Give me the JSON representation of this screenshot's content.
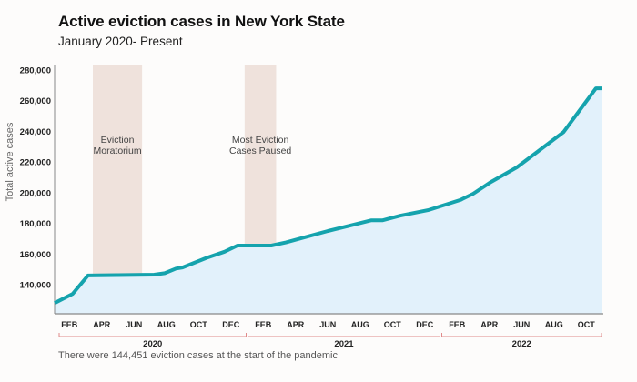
{
  "chart_data": {
    "type": "area",
    "title": "Active eviction cases in New York State",
    "subtitle": "January 2020- Present",
    "xlabel": "",
    "ylabel": "Total active cases",
    "ylim": [
      128000,
      280000
    ],
    "yticks": [
      140000,
      160000,
      180000,
      200000,
      220000,
      240000,
      260000,
      280000
    ],
    "ytick_labels": [
      "140,000",
      "160,000",
      "180,000",
      "200,000",
      "220,000",
      "240,000",
      "260,000",
      "280,000"
    ],
    "grid": false,
    "xlim_months": [
      0,
      34
    ],
    "xticks": [
      {
        "m": 1,
        "label": "FEB"
      },
      {
        "m": 3,
        "label": "APR"
      },
      {
        "m": 5,
        "label": "JUN"
      },
      {
        "m": 7,
        "label": "AUG"
      },
      {
        "m": 9,
        "label": "OCT"
      },
      {
        "m": 11,
        "label": "DEC"
      },
      {
        "m": 13,
        "label": "FEB"
      },
      {
        "m": 15,
        "label": "APR"
      },
      {
        "m": 17,
        "label": "JUN"
      },
      {
        "m": 19,
        "label": "AUG"
      },
      {
        "m": 21,
        "label": "OCT"
      },
      {
        "m": 23,
        "label": "DEC"
      },
      {
        "m": 25,
        "label": "FEB"
      },
      {
        "m": 27,
        "label": "APR"
      },
      {
        "m": 29,
        "label": "JUN"
      },
      {
        "m": 31,
        "label": "AUG"
      },
      {
        "m": 33,
        "label": "OCT"
      }
    ],
    "years": [
      {
        "label": "2020",
        "start": 0,
        "end": 12
      },
      {
        "label": "2021",
        "start": 12,
        "end": 24
      },
      {
        "label": "2022",
        "start": 24,
        "end": 34
      }
    ],
    "bands": [
      {
        "label_lines": [
          "Eviction",
          "Moratorium"
        ],
        "start": 2.45,
        "end": 5.5
      },
      {
        "label_lines": [
          "Most Eviction",
          "Cases Paused"
        ],
        "start": 11.85,
        "end": 13.8
      }
    ],
    "series": [
      {
        "name": "Total active cases",
        "color": "#15a3ad",
        "fill": "#e2f1fb",
        "points": [
          [
            0,
            128000
          ],
          [
            1.2,
            134000
          ],
          [
            2.15,
            146000
          ],
          [
            4,
            146200
          ],
          [
            6.25,
            146500
          ],
          [
            6.9,
            147500
          ],
          [
            7.6,
            150500
          ],
          [
            8.0,
            151200
          ],
          [
            9.5,
            157500
          ],
          [
            10.6,
            161500
          ],
          [
            11.4,
            165500
          ],
          [
            13.5,
            165500
          ],
          [
            14.4,
            167500
          ],
          [
            17.0,
            175000
          ],
          [
            19.7,
            182000
          ],
          [
            20.4,
            182000
          ],
          [
            21.5,
            185000
          ],
          [
            23.2,
            188600
          ],
          [
            25.2,
            195200
          ],
          [
            26.0,
            199300
          ],
          [
            27.1,
            207000
          ],
          [
            28.7,
            216500
          ],
          [
            31.6,
            239600
          ],
          [
            33.6,
            268100
          ],
          [
            34,
            268100
          ]
        ]
      }
    ],
    "annotation": "There were 144,451 eviction cases at the start of the pandemic"
  },
  "colors": {
    "line": "#15a3ad",
    "area": "#e2f1fb",
    "band": "#efe2dc",
    "bracket": "#e08a8a"
  }
}
